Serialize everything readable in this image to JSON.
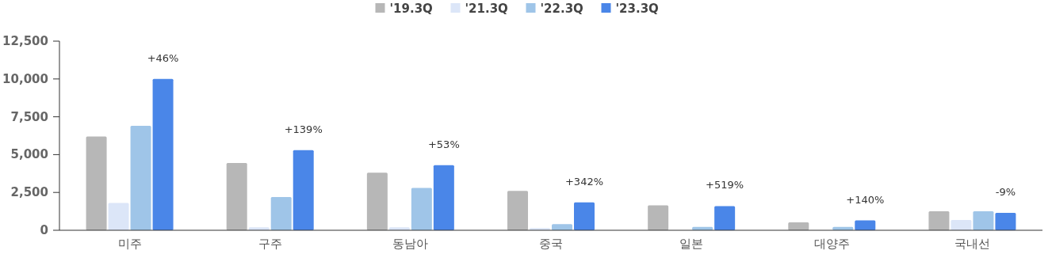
{
  "chart_data": {
    "type": "bar",
    "categories": [
      "미주",
      "구주",
      "동남아",
      "중국",
      "일본",
      "대양주",
      "국내선"
    ],
    "series": [
      {
        "name": "'19.3Q",
        "color": "#b7b7b7",
        "values": [
          6200,
          4450,
          3800,
          2600,
          1650,
          520,
          1250
        ]
      },
      {
        "name": "'21.3Q",
        "color": "#dce6f8",
        "values": [
          1800,
          200,
          200,
          150,
          0,
          0,
          680
        ]
      },
      {
        "name": "'22.3Q",
        "color": "#9fc5e8",
        "values": [
          6900,
          2200,
          2800,
          400,
          220,
          220,
          1250
        ]
      },
      {
        "name": "'23.3Q",
        "color": "#4a86e8",
        "values": [
          10000,
          5300,
          4300,
          1850,
          1600,
          650,
          1150
        ]
      }
    ],
    "ylim": [
      0,
      12500
    ],
    "yticks": [
      {
        "value": 0,
        "label": "0"
      },
      {
        "value": 2500,
        "label": "2,500"
      },
      {
        "value": 5000,
        "label": "5,000"
      },
      {
        "value": 7500,
        "label": "7,500"
      },
      {
        "value": 10000,
        "label": "10,000"
      },
      {
        "value": 12500,
        "label": "12,500"
      }
    ],
    "legend": "top",
    "annotations": [
      "+46%",
      "+139%",
      "+53%",
      "+342%",
      "+519%",
      "+140%",
      "-9%"
    ]
  }
}
